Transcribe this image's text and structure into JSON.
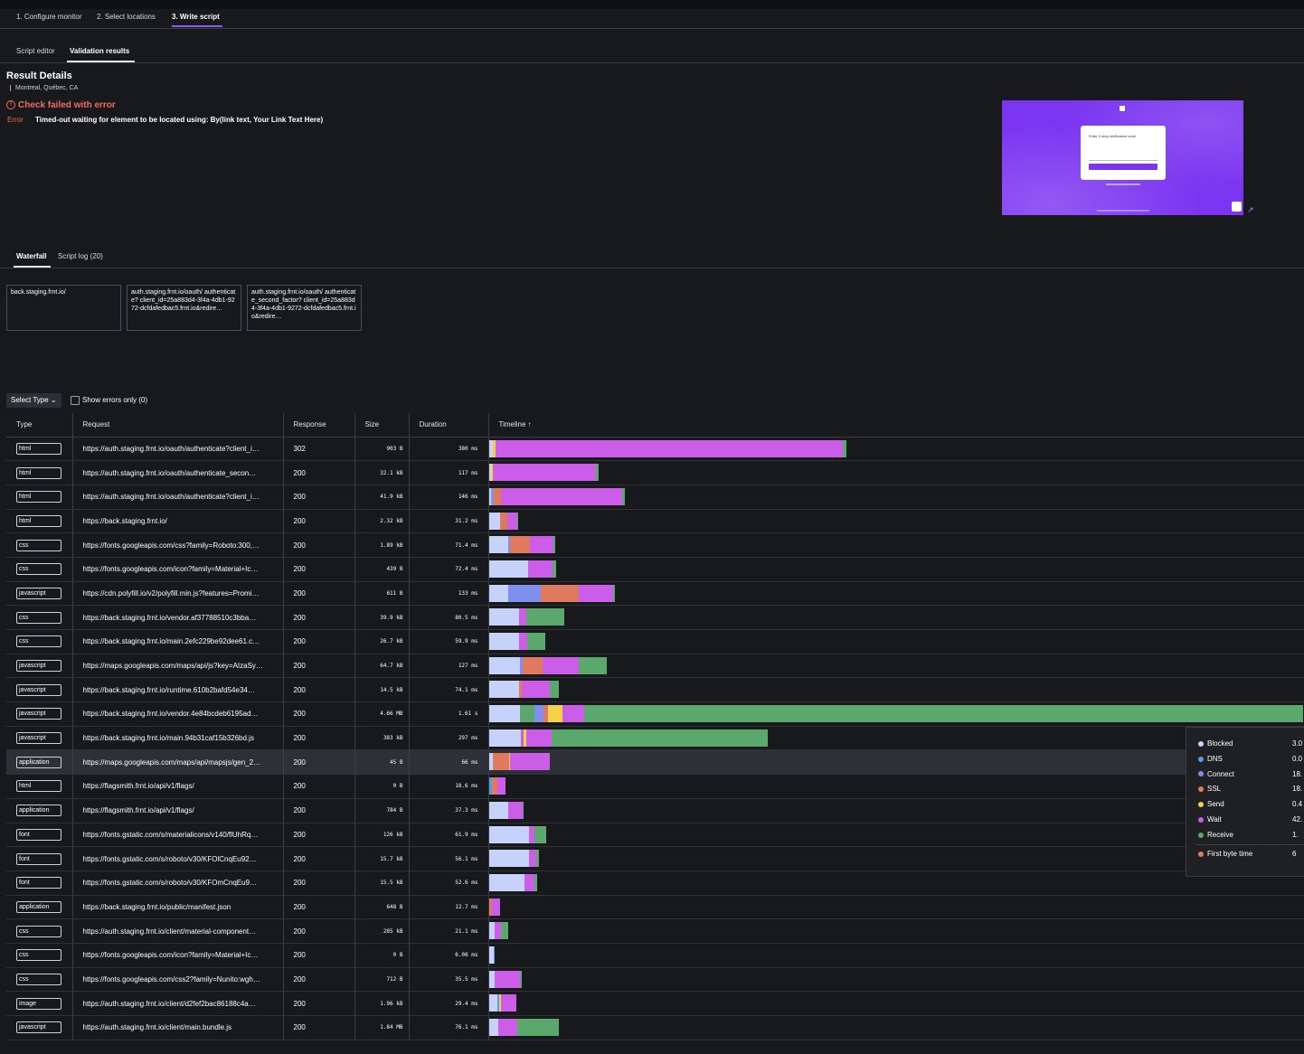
{
  "steps": [
    "1. Configure monitor",
    "2. Select locations",
    "3. Write script"
  ],
  "subtabs": [
    "Script editor",
    "Validation results"
  ],
  "result": {
    "title": "Result Details",
    "location": "Montreal, Québec, CA",
    "error_title": "Check failed with error",
    "error_label": "Error",
    "error_message": "Timed-out waiting for element to be located using: By(link text, Your Link Text Here)"
  },
  "screenshot": {
    "heading": "Enter 2-step verification code"
  },
  "waterfall_tabs": [
    "Waterfall",
    "Script log (20)"
  ],
  "pages": [
    "back.staging.frnt.io/",
    "auth.staging.frnt.io/oauth/ authenticate? client_id=25a883d4-3f4a-4db1-9272-dcfdafedbac5.frnt.io&redire…",
    "auth.staging.frnt.io/oauth/ authenticate_second_factor? client_id=25a883d4-3f4a-4db1-9272-dcfdafedbac5.frnt.io&redire…"
  ],
  "filters": {
    "select_type": "Select Type",
    "show_errors": "Show errors only (0)"
  },
  "columns": [
    "Type",
    "Request",
    "Response",
    "Size",
    "Duration",
    "Timeline ↑"
  ],
  "colors": {
    "blocked": "#c7d2fb",
    "dns": "#5c9ae6",
    "connect": "#7f8ff0",
    "ssl": "#e07a5f",
    "send": "#f2d14b",
    "wait": "#cc5de8",
    "receive": "#5aa86b"
  },
  "rows": [
    {
      "type": "html",
      "request": "https://auth.staging.frnt.io/oauth/authenticate?client_i…",
      "response": "302",
      "size": "903 B",
      "duration": "380 ms",
      "segs": [
        [
          "blocked",
          4
        ],
        [
          "send",
          3
        ],
        [
          "wait",
          384
        ],
        [
          "receive",
          4
        ]
      ]
    },
    {
      "type": "html",
      "request": "https://auth.staging.frnt.io/oauth/authenticate_secon…",
      "response": "200",
      "size": "32.1 kB",
      "duration": "117 ms",
      "segs": [
        [
          "blocked",
          2
        ],
        [
          "send",
          2
        ],
        [
          "wait",
          114
        ],
        [
          "receive",
          3
        ]
      ]
    },
    {
      "type": "html",
      "request": "https://auth.staging.frnt.io/oauth/authenticate?client_i…",
      "response": "200",
      "size": "41.9 kB",
      "duration": "146 ms",
      "segs": [
        [
          "blocked",
          2
        ],
        [
          "connect",
          3
        ],
        [
          "ssl",
          8
        ],
        [
          "wait",
          134
        ],
        [
          "receive",
          3
        ]
      ]
    },
    {
      "type": "html",
      "request": "https://back.staging.frnt.io/",
      "response": "200",
      "size": "2.32 kB",
      "duration": "31.2 ms",
      "segs": [
        [
          "blocked",
          12
        ],
        [
          "ssl",
          8
        ],
        [
          "wait",
          11
        ],
        [
          "receive",
          1
        ]
      ]
    },
    {
      "type": "css",
      "request": "https://fonts.googleapis.com/css?family=Roboto:300,…",
      "response": "200",
      "size": "1.89 kB",
      "duration": "71.4 ms",
      "segs": [
        [
          "blocked",
          21
        ],
        [
          "connect",
          2
        ],
        [
          "ssl",
          22
        ],
        [
          "wait",
          26
        ],
        [
          "receive",
          2
        ]
      ]
    },
    {
      "type": "css",
      "request": "https://fonts.googleapis.com/icon?family=Material+Ic…",
      "response": "200",
      "size": "439 B",
      "duration": "72.4 ms",
      "segs": [
        [
          "blocked",
          43
        ],
        [
          "wait",
          27
        ],
        [
          "receive",
          4
        ]
      ]
    },
    {
      "type": "javascript",
      "request": "https://cdn.polyfill.io/v2/polyfill.min.js?features=Promi…",
      "response": "200",
      "size": "611 B",
      "duration": "133 ms",
      "segs": [
        [
          "blocked",
          21
        ],
        [
          "connect",
          36
        ],
        [
          "ssl",
          42
        ],
        [
          "wait",
          38
        ],
        [
          "receive",
          2
        ]
      ]
    },
    {
      "type": "css",
      "request": "https://back.staging.frnt.io/vendor.af37788510c3bba…",
      "response": "200",
      "size": "39.9 kB",
      "duration": "80.5 ms",
      "segs": [
        [
          "blocked",
          33
        ],
        [
          "wait",
          8
        ],
        [
          "receive",
          42
        ]
      ]
    },
    {
      "type": "css",
      "request": "https://back.staging.frnt.io/main.2efc229be92dee61.c…",
      "response": "200",
      "size": "26.7 kB",
      "duration": "59.9 ms",
      "segs": [
        [
          "blocked",
          33
        ],
        [
          "wait",
          9
        ],
        [
          "receive",
          20
        ]
      ]
    },
    {
      "type": "javascript",
      "request": "https://maps.googleapis.com/maps/api/js?key=AIzaSy…",
      "response": "200",
      "size": "64.7 kB",
      "duration": "127 ms",
      "segs": [
        [
          "blocked",
          34
        ],
        [
          "connect",
          3
        ],
        [
          "ssl",
          22
        ],
        [
          "wait",
          40
        ],
        [
          "receive",
          31
        ]
      ]
    },
    {
      "type": "javascript",
      "request": "https://back.staging.frnt.io/runtime.610b2bafd54e34…",
      "response": "200",
      "size": "14.5 kB",
      "duration": "74.1 ms",
      "segs": [
        [
          "blocked",
          33
        ],
        [
          "ssl",
          3
        ],
        [
          "wait",
          31
        ],
        [
          "receive",
          10
        ]
      ]
    },
    {
      "type": "javascript",
      "request": "https://back.staging.frnt.io/vendor.4e84bcdeb6195ad…",
      "response": "200",
      "size": "4.66 MB",
      "duration": "1.61 s",
      "segs": [
        [
          "blocked",
          34
        ],
        [
          "receive",
          16
        ],
        [
          "connect",
          10
        ],
        [
          "ssl",
          5
        ],
        [
          "send",
          16
        ],
        [
          "wait",
          24
        ],
        [
          "receive",
          795
        ]
      ]
    },
    {
      "type": "javascript",
      "request": "https://back.staging.frnt.io/main.94b31caf15b326bd.js",
      "response": "200",
      "size": "383 kB",
      "duration": "297 ms",
      "segs": [
        [
          "blocked",
          35
        ],
        [
          "wait",
          3
        ],
        [
          "send",
          3
        ],
        [
          "wait",
          28
        ],
        [
          "receive",
          239
        ]
      ]
    },
    {
      "type": "application",
      "request": "https://maps.googleapis.com/maps/api/mapsjs/gen_2…",
      "response": "200",
      "size": "45 B",
      "duration": "66 ms",
      "hl": true,
      "segs": [
        [
          "blocked",
          4
        ],
        [
          "ssl",
          18
        ],
        [
          "send",
          1
        ],
        [
          "wait",
          44
        ]
      ]
    },
    {
      "type": "html",
      "request": "https://flagsmith.frnt.io/api/v1/flags/",
      "response": "200",
      "size": "0 B",
      "duration": "18.6 ms",
      "segs": [
        [
          "dns",
          3
        ],
        [
          "ssl",
          6
        ],
        [
          "wait",
          9
        ]
      ]
    },
    {
      "type": "application",
      "request": "https://flagsmith.frnt.io/api/v1/flags/",
      "response": "200",
      "size": "784 B",
      "duration": "37.3 ms",
      "segs": [
        [
          "blocked",
          21
        ],
        [
          "wait",
          16
        ],
        [
          "receive",
          1
        ]
      ]
    },
    {
      "type": "font",
      "request": "https://fonts.gstatic.com/s/materialicons/v140/flUhRq…",
      "response": "200",
      "size": "126 kB",
      "duration": "61.9 ms",
      "segs": [
        [
          "blocked",
          44
        ],
        [
          "wait",
          6
        ],
        [
          "receive",
          13
        ]
      ]
    },
    {
      "type": "font",
      "request": "https://fonts.gstatic.com/s/roboto/v30/KFOlCnqEu92…",
      "response": "200",
      "size": "15.7 kB",
      "duration": "56.1 ms",
      "segs": [
        [
          "blocked",
          44
        ],
        [
          "wait",
          8
        ],
        [
          "receive",
          3
        ]
      ]
    },
    {
      "type": "font",
      "request": "https://fonts.gstatic.com/s/roboto/v30/KFOmCnqEu9…",
      "response": "200",
      "size": "15.5 kB",
      "duration": "52.6 ms",
      "segs": [
        [
          "blocked",
          39
        ],
        [
          "wait",
          11
        ],
        [
          "receive",
          3
        ]
      ]
    },
    {
      "type": "application",
      "request": "https://back.staging.frnt.io/public/manifest.json",
      "response": "200",
      "size": "648 B",
      "duration": "12.7 ms",
      "segs": [
        [
          "ssl",
          3
        ],
        [
          "wait",
          9
        ]
      ]
    },
    {
      "type": "css",
      "request": "https://auth.staging.frnt.io/client/material-component…",
      "response": "200",
      "size": "285 kB",
      "duration": "21.1 ms",
      "segs": [
        [
          "blocked",
          6
        ],
        [
          "wait",
          7
        ],
        [
          "receive",
          8
        ]
      ]
    },
    {
      "type": "css",
      "request": "https://fonts.googleapis.com/icon?family=Material+Ic…",
      "response": "200",
      "size": "0 B",
      "duration": "6.08 ms",
      "segs": [
        [
          "blocked",
          5
        ],
        [
          "dns",
          1
        ]
      ]
    },
    {
      "type": "css",
      "request": "https://fonts.googleapis.com/css2?family=Nunito:wgh…",
      "response": "200",
      "size": "712 B",
      "duration": "35.5 ms",
      "segs": [
        [
          "blocked",
          6
        ],
        [
          "wait",
          28
        ],
        [
          "receive",
          2
        ]
      ]
    },
    {
      "type": "image",
      "request": "https://auth.staging.frnt.io/client/d2fef2bac86188c4a…",
      "response": "200",
      "size": "1.96 kB",
      "duration": "29.4 ms",
      "segs": [
        [
          "blocked",
          9
        ],
        [
          "dns",
          2
        ],
        [
          "send",
          2
        ],
        [
          "wait",
          17
        ]
      ]
    },
    {
      "type": "javascript",
      "request": "https://auth.staging.frnt.io/client/main.bundle.js",
      "response": "200",
      "size": "1.84 MB",
      "duration": "76.1 ms",
      "segs": [
        [
          "blocked",
          10
        ],
        [
          "wait",
          21
        ],
        [
          "receive",
          46
        ]
      ]
    }
  ],
  "legend": [
    {
      "key": "blocked",
      "label": "Blocked",
      "value": "3.0"
    },
    {
      "key": "dns",
      "label": "DNS",
      "value": "0.0"
    },
    {
      "key": "connect",
      "label": "Connect",
      "value": "18."
    },
    {
      "key": "ssl",
      "label": "SSL",
      "value": "18."
    },
    {
      "key": "send",
      "label": "Send",
      "value": "0.4"
    },
    {
      "key": "wait",
      "label": "Wait",
      "value": "42."
    },
    {
      "key": "receive",
      "label": "Receive",
      "value": "1."
    },
    {
      "key": "ssl",
      "label": "First byte time",
      "value": "6"
    }
  ]
}
